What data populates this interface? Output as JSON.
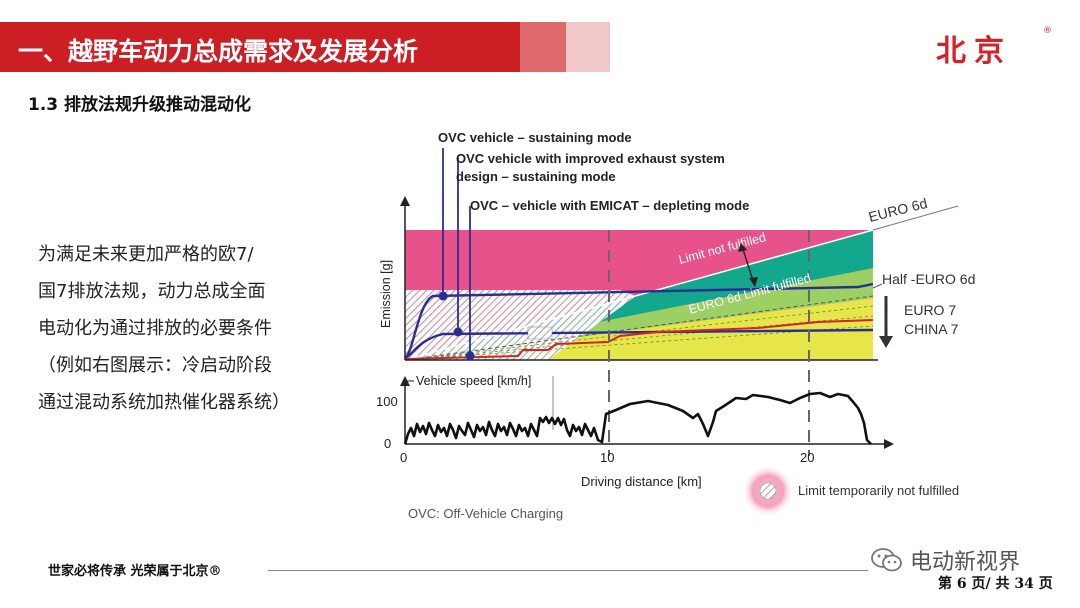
{
  "header": {
    "title": "一、越野车动力总成需求及发展分析",
    "brand": "北京",
    "brand_mark": "®"
  },
  "section": {
    "subtitle": "1.3 排放法规升级推动混动化"
  },
  "body": {
    "lines": [
      "为满足未来更加严格的欧7/",
      "国7排放法规，动力总成全面",
      "电动化为通过排放的必要条件",
      "（例如右图展示：冷启动阶段",
      "通过混动系统加热催化器系统）"
    ]
  },
  "figure": {
    "callouts": [
      "OVC vehicle – sustaining mode",
      "OVC vehicle with improved exhaust system",
      "design – sustaining mode",
      "OVC – vehicle with EMICAT – depleting mode"
    ],
    "upper_ylabel": "Emission [g]",
    "limit_not_fulfilled": "Limit not fulfilled",
    "limit_fulfilled": "EURO 6d Limit fulfilled",
    "euro6d": "EURO 6d",
    "half_euro6d": "Half -EURO 6d",
    "euro7": "EURO 7",
    "china7": "CHINA 7",
    "speed_label": "Vehicle speed [km/h]",
    "speed_ticks": [
      "100",
      "0"
    ],
    "x_ticks": [
      "0",
      "10",
      "20"
    ],
    "xlabel": "Driving distance [km]",
    "legend_temp": "Limit temporarily not fulfilled",
    "footnote": "OVC: Off-Vehicle Charging"
  },
  "footer": {
    "slogan": "世家必将传承 光荣属于北京®",
    "wechat_name": "电动新视界",
    "page": "第 6 页/ 共 34 页"
  },
  "colors": {
    "brand_red": "#cc1f25",
    "limit_pink": "#e8528a",
    "fulfilled_green": "#13a78e",
    "china7_yellow": "#e6e54a",
    "curve_navy": "#2a2f8f",
    "curve_red": "#d5232b"
  }
}
